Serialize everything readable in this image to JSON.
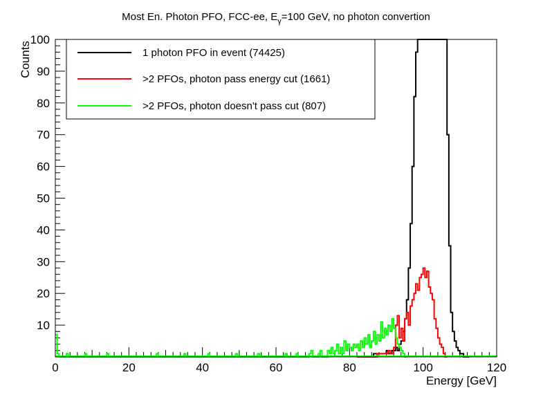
{
  "chart_data": {
    "type": "histogram-step",
    "title": {
      "prefix": "Most En. Photon PFO, FCC-ee,  E",
      "subscript": "γ",
      "suffix": "=100 GeV, no photon convertion"
    },
    "xlabel": "Energy [GeV]",
    "ylabel": "Counts",
    "xlim": [
      0,
      120
    ],
    "ylim": [
      0,
      100
    ],
    "x_ticks": [
      0,
      20,
      40,
      60,
      80,
      100,
      120
    ],
    "y_ticks": [
      10,
      20,
      30,
      40,
      50,
      60,
      70,
      80,
      90,
      100
    ],
    "bin_width": 0.5,
    "legend_position": "top-left",
    "series": [
      {
        "name": "1 photon PFO in event (74425)",
        "color": "#000000",
        "bins": [
          [
            84.0,
            0
          ],
          [
            86.5,
            1
          ],
          [
            88.5,
            1
          ],
          [
            90.0,
            2
          ],
          [
            90.5,
            1
          ],
          [
            91.5,
            2
          ],
          [
            92.5,
            3
          ],
          [
            93.0,
            2
          ],
          [
            93.5,
            4
          ],
          [
            94.0,
            5
          ],
          [
            94.5,
            8
          ],
          [
            95.0,
            12
          ],
          [
            95.5,
            18
          ],
          [
            96.0,
            28
          ],
          [
            96.5,
            42
          ],
          [
            97.0,
            60
          ],
          [
            97.5,
            82
          ],
          [
            98.0,
            96
          ],
          [
            98.5,
            100
          ],
          [
            106.0,
            100
          ],
          [
            106.5,
            70
          ],
          [
            107.0,
            35
          ],
          [
            107.5,
            14
          ],
          [
            108.0,
            8
          ],
          [
            108.5,
            5
          ],
          [
            109.0,
            3
          ],
          [
            109.5,
            2
          ],
          [
            110.0,
            1
          ],
          [
            110.5,
            1
          ],
          [
            111.0,
            0
          ],
          [
            112.0,
            0
          ]
        ]
      },
      {
        "name": ">2 PFOs, photon pass energy cut (1661)",
        "color": "#ff0000",
        "bins": [
          [
            82.0,
            0
          ],
          [
            87.5,
            1
          ],
          [
            90.0,
            1
          ],
          [
            90.5,
            2
          ],
          [
            91.0,
            1
          ],
          [
            92.0,
            3
          ],
          [
            92.5,
            10
          ],
          [
            93.0,
            13
          ],
          [
            93.5,
            6
          ],
          [
            94.0,
            9
          ],
          [
            94.5,
            5
          ],
          [
            95.0,
            12
          ],
          [
            95.5,
            14
          ],
          [
            96.0,
            10
          ],
          [
            96.5,
            16
          ],
          [
            97.0,
            18
          ],
          [
            97.5,
            20
          ],
          [
            98.0,
            23
          ],
          [
            98.5,
            21
          ],
          [
            99.0,
            25
          ],
          [
            99.5,
            26
          ],
          [
            100.0,
            28
          ],
          [
            100.5,
            25
          ],
          [
            101.0,
            27
          ],
          [
            101.5,
            22
          ],
          [
            102.0,
            20
          ],
          [
            102.5,
            18
          ],
          [
            103.0,
            12
          ],
          [
            103.5,
            9
          ],
          [
            104.0,
            6
          ],
          [
            104.5,
            4
          ],
          [
            105.0,
            3
          ],
          [
            105.5,
            1
          ],
          [
            106.0,
            0
          ]
        ]
      },
      {
        "name": ">2 PFOs, photon doesn't pass cut (807)",
        "color": "#00ff00",
        "bins": [
          [
            0.0,
            7
          ],
          [
            0.5,
            1
          ],
          [
            1.0,
            0
          ],
          [
            3.0,
            1
          ],
          [
            3.5,
            0
          ],
          [
            8.0,
            1
          ],
          [
            8.5,
            0
          ],
          [
            14.0,
            1
          ],
          [
            14.5,
            0
          ],
          [
            27.5,
            1
          ],
          [
            28.0,
            0
          ],
          [
            35.0,
            1
          ],
          [
            35.5,
            0
          ],
          [
            41.5,
            1
          ],
          [
            42.0,
            0
          ],
          [
            49.0,
            1
          ],
          [
            49.5,
            0
          ],
          [
            55.0,
            1
          ],
          [
            55.5,
            0
          ],
          [
            62.5,
            1
          ],
          [
            63.0,
            0
          ],
          [
            65.5,
            1
          ],
          [
            66.0,
            0
          ],
          [
            69.0,
            1
          ],
          [
            69.5,
            2
          ],
          [
            70.0,
            0
          ],
          [
            71.5,
            1
          ],
          [
            72.0,
            2
          ],
          [
            72.5,
            0
          ],
          [
            74.0,
            2
          ],
          [
            74.5,
            1
          ],
          [
            75.0,
            3
          ],
          [
            75.5,
            1
          ],
          [
            76.0,
            2
          ],
          [
            76.5,
            4
          ],
          [
            77.0,
            1
          ],
          [
            77.5,
            3
          ],
          [
            78.0,
            1
          ],
          [
            78.5,
            5
          ],
          [
            79.0,
            2
          ],
          [
            79.5,
            4
          ],
          [
            80.0,
            3
          ],
          [
            80.5,
            2
          ],
          [
            81.0,
            4
          ],
          [
            81.5,
            3
          ],
          [
            82.0,
            4
          ],
          [
            82.5,
            2
          ],
          [
            83.0,
            5
          ],
          [
            83.5,
            3
          ],
          [
            84.0,
            6
          ],
          [
            84.5,
            4
          ],
          [
            85.0,
            7
          ],
          [
            85.5,
            3
          ],
          [
            86.0,
            5
          ],
          [
            86.5,
            8
          ],
          [
            87.0,
            4
          ],
          [
            87.5,
            7
          ],
          [
            88.0,
            5
          ],
          [
            88.5,
            11
          ],
          [
            89.0,
            6
          ],
          [
            89.5,
            9
          ],
          [
            90.0,
            7
          ],
          [
            90.5,
            10
          ],
          [
            91.0,
            8
          ],
          [
            91.5,
            12
          ],
          [
            92.0,
            9
          ],
          [
            92.5,
            6
          ],
          [
            93.0,
            4
          ],
          [
            93.5,
            3
          ],
          [
            94.0,
            2
          ],
          [
            94.5,
            1
          ],
          [
            95.0,
            0
          ]
        ]
      }
    ]
  }
}
